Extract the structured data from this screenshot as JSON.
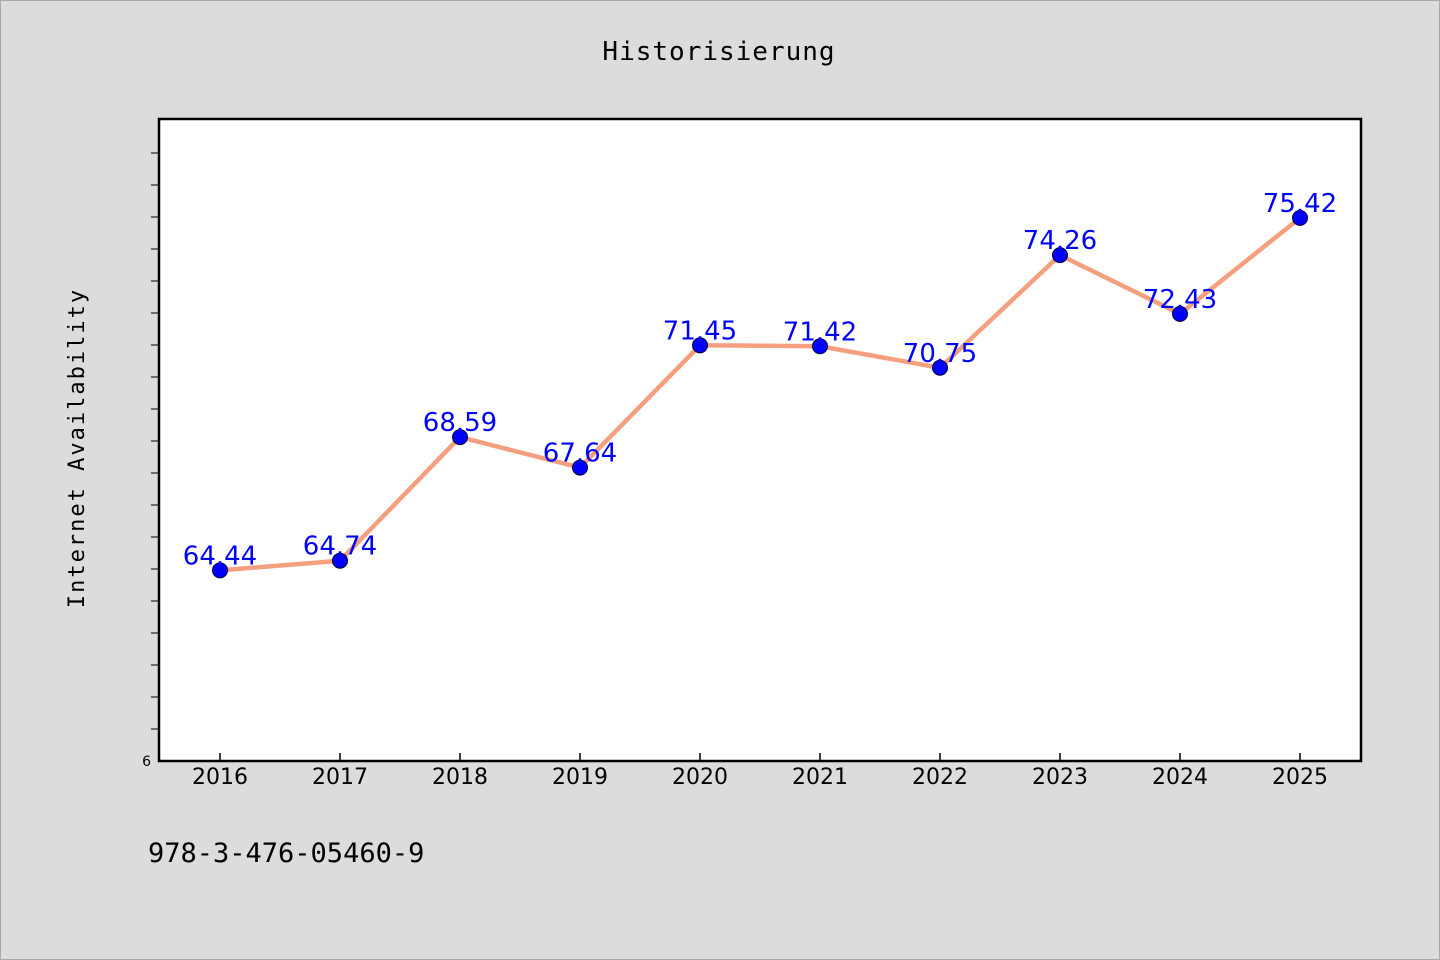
{
  "chart_data": {
    "type": "line",
    "title": "Historisierung",
    "xlabel": "",
    "ylabel": "Internet Availability",
    "categories": [
      "2016",
      "2017",
      "2018",
      "2019",
      "2020",
      "2021",
      "2022",
      "2023",
      "2024",
      "2025"
    ],
    "series": [
      {
        "values": [
          64.44,
          64.74,
          68.59,
          67.64,
          71.45,
          71.42,
          70.75,
          74.26,
          72.43,
          75.42
        ],
        "color": "#f4a07e",
        "marker_color": "#0000ff"
      }
    ],
    "data_labels": [
      "64.44",
      "64.74",
      "68.59",
      "67.64",
      "71.45",
      "71.42",
      "70.75",
      "74.26",
      "72.43",
      "75.42"
    ],
    "y_tick_labels": [
      "6"
    ],
    "ylim": [
      58.5,
      78.5
    ],
    "grid": false,
    "label_color": "#0000ff"
  },
  "footer": {
    "text": "978-3-476-05460-9"
  }
}
